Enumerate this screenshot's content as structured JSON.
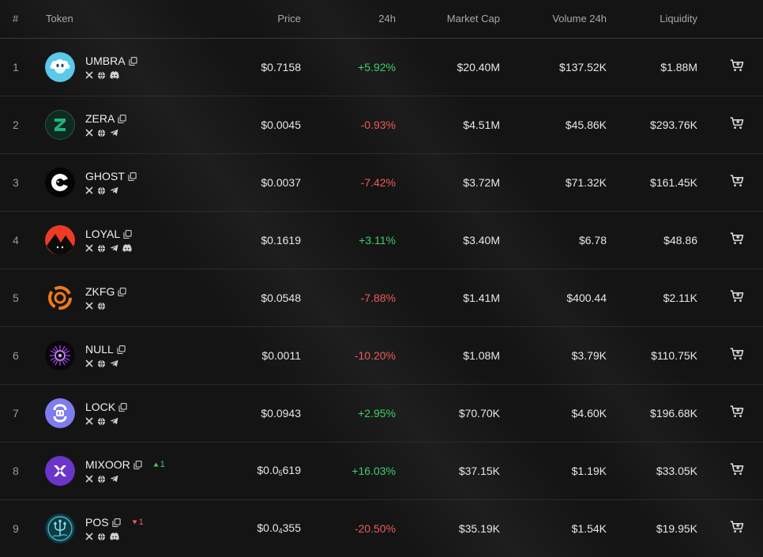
{
  "header": {
    "idx": "#",
    "token": "Token",
    "price": "Price",
    "change": "24h",
    "market_cap": "Market Cap",
    "volume": "Volume 24h",
    "liquidity": "Liquidity"
  },
  "colors": {
    "positive": "#3ecf6a",
    "negative": "#ef5a5a",
    "background": "#141414"
  },
  "rows": [
    {
      "rank": "1",
      "name": "UMBRA",
      "socials": [
        "x-icon",
        "globe-icon",
        "discord-icon"
      ],
      "price_prefix": "$0.7158",
      "price_sub": "",
      "price_suffix": "",
      "change": "+5.92%",
      "change_dir": "pos",
      "market_cap": "$20.40M",
      "volume": "$137.52K",
      "liquidity": "$1.88M",
      "rank_change": "",
      "rank_dir": ""
    },
    {
      "rank": "2",
      "name": "ZERA",
      "socials": [
        "x-icon",
        "globe-icon",
        "telegram-icon"
      ],
      "price_prefix": "$0.0045",
      "price_sub": "",
      "price_suffix": "",
      "change": "-0.93%",
      "change_dir": "neg",
      "market_cap": "$4.51M",
      "volume": "$45.86K",
      "liquidity": "$293.76K",
      "rank_change": "",
      "rank_dir": ""
    },
    {
      "rank": "3",
      "name": "GHOST",
      "socials": [
        "x-icon",
        "globe-icon",
        "telegram-icon"
      ],
      "price_prefix": "$0.0037",
      "price_sub": "",
      "price_suffix": "",
      "change": "-7.42%",
      "change_dir": "neg",
      "market_cap": "$3.72M",
      "volume": "$71.32K",
      "liquidity": "$161.45K",
      "rank_change": "",
      "rank_dir": ""
    },
    {
      "rank": "4",
      "name": "LOYAL",
      "socials": [
        "x-icon",
        "globe-icon",
        "telegram-icon",
        "discord-icon"
      ],
      "price_prefix": "$0.1619",
      "price_sub": "",
      "price_suffix": "",
      "change": "+3.11%",
      "change_dir": "pos",
      "market_cap": "$3.40M",
      "volume": "$6.78",
      "liquidity": "$48.86",
      "rank_change": "",
      "rank_dir": ""
    },
    {
      "rank": "5",
      "name": "ZKFG",
      "socials": [
        "x-icon",
        "globe-icon"
      ],
      "price_prefix": "$0.0548",
      "price_sub": "",
      "price_suffix": "",
      "change": "-7.88%",
      "change_dir": "neg",
      "market_cap": "$1.41M",
      "volume": "$400.44",
      "liquidity": "$2.11K",
      "rank_change": "",
      "rank_dir": ""
    },
    {
      "rank": "6",
      "name": "NULL",
      "socials": [
        "x-icon",
        "globe-icon",
        "telegram-icon"
      ],
      "price_prefix": "$0.0011",
      "price_sub": "",
      "price_suffix": "",
      "change": "-10.20%",
      "change_dir": "neg",
      "market_cap": "$1.08M",
      "volume": "$3.79K",
      "liquidity": "$110.75K",
      "rank_change": "",
      "rank_dir": ""
    },
    {
      "rank": "7",
      "name": "LOCK",
      "socials": [
        "x-icon",
        "globe-icon",
        "telegram-icon"
      ],
      "price_prefix": "$0.0943",
      "price_sub": "",
      "price_suffix": "",
      "change": "+2.95%",
      "change_dir": "pos",
      "market_cap": "$70.70K",
      "volume": "$4.60K",
      "liquidity": "$196.68K",
      "rank_change": "",
      "rank_dir": ""
    },
    {
      "rank": "8",
      "name": "MIXOOR",
      "socials": [
        "x-icon",
        "globe-icon",
        "telegram-icon"
      ],
      "price_prefix": "$0.0",
      "price_sub": "5",
      "price_suffix": "619",
      "change": "+16.03%",
      "change_dir": "pos",
      "market_cap": "$37.15K",
      "volume": "$1.19K",
      "liquidity": "$33.05K",
      "rank_change": "1",
      "rank_dir": "up"
    },
    {
      "rank": "9",
      "name": "POS",
      "socials": [
        "x-icon",
        "globe-icon",
        "discord-icon"
      ],
      "price_prefix": "$0.0",
      "price_sub": "4",
      "price_suffix": "355",
      "change": "-20.50%",
      "change_dir": "neg",
      "market_cap": "$35.19K",
      "volume": "$1.54K",
      "liquidity": "$19.95K",
      "rank_change": "1",
      "rank_dir": "down"
    }
  ]
}
